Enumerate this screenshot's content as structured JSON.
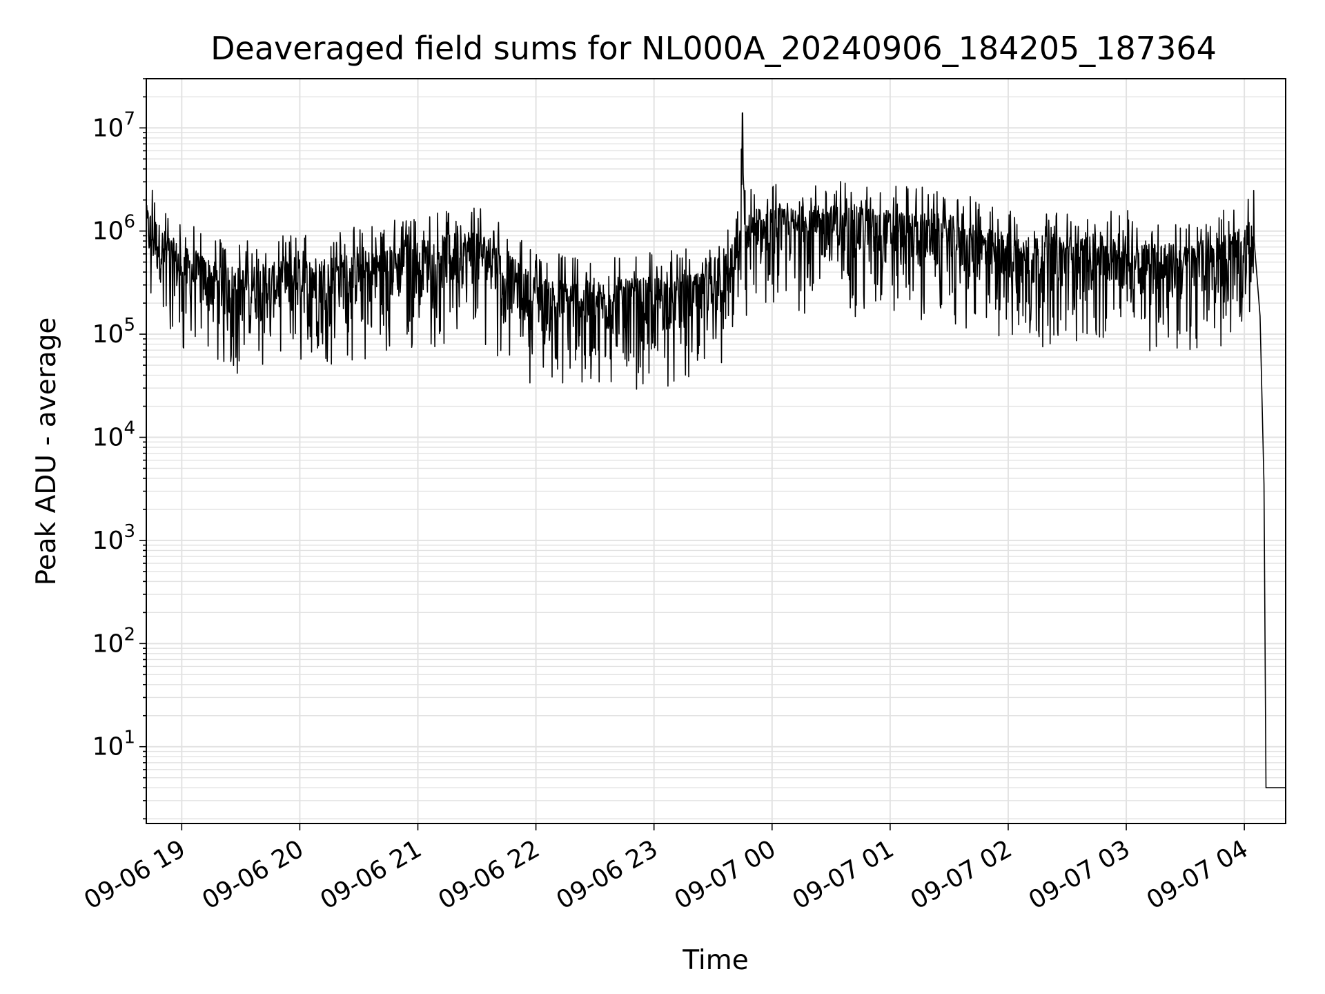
{
  "chart_data": {
    "type": "line",
    "title": "Deaveraged field sums for NL000A_20240906_184205_187364",
    "xlabel": "Time",
    "ylabel": "Peak ADU - average",
    "yscale": "log",
    "ylim": [
      1.8,
      30000000
    ],
    "xlim": [
      "2024-09-06 18:42",
      "2024-09-07 04:21"
    ],
    "grid": true,
    "line_color": "#000000",
    "x_ticks": [
      "09-06 19",
      "09-06 20",
      "09-06 21",
      "09-06 22",
      "09-06 23",
      "09-07 00",
      "09-07 01",
      "09-07 02",
      "09-07 03",
      "09-07 04"
    ],
    "y_ticks": [
      {
        "base": "10",
        "exp": "1",
        "value": 10
      },
      {
        "base": "10",
        "exp": "2",
        "value": 100
      },
      {
        "base": "10",
        "exp": "3",
        "value": 1000
      },
      {
        "base": "10",
        "exp": "4",
        "value": 10000
      },
      {
        "base": "10",
        "exp": "5",
        "value": 100000
      },
      {
        "base": "10",
        "exp": "6",
        "value": 1000000
      },
      {
        "base": "10",
        "exp": "7",
        "value": 10000000
      }
    ],
    "series": [
      {
        "x": [
          "2024-09-06 18:42",
          "2024-09-06 18:50",
          "2024-09-06 19:00",
          "2024-09-06 19:15",
          "2024-09-06 19:30",
          "2024-09-06 20:00",
          "2024-09-06 20:30",
          "2024-09-06 21:00",
          "2024-09-06 21:30",
          "2024-09-06 22:00",
          "2024-09-06 22:30",
          "2024-09-06 23:00",
          "2024-09-06 23:30",
          "2024-09-06 23:44",
          "2024-09-06 23:45",
          "2024-09-06 23:46",
          "2024-09-07 00:00",
          "2024-09-07 00:30",
          "2024-09-07 01:00",
          "2024-09-07 01:30",
          "2024-09-07 02:00",
          "2024-09-07 02:30",
          "2024-09-07 03:00",
          "2024-09-07 03:30",
          "2024-09-07 04:00",
          "2024-09-07 04:05",
          "2024-09-07 04:08",
          "2024-09-07 04:10",
          "2024-09-07 04:11",
          "2024-09-07 04:21"
        ],
        "y": [
          1000000,
          600000,
          400000,
          300000,
          250000,
          300000,
          350000,
          450000,
          600000,
          200000,
          180000,
          200000,
          220000,
          600000,
          14000000,
          800000,
          900000,
          1000000,
          900000,
          800000,
          500000,
          500000,
          500000,
          400000,
          600000,
          800000,
          150000,
          3500,
          4,
          4
        ]
      }
    ]
  }
}
